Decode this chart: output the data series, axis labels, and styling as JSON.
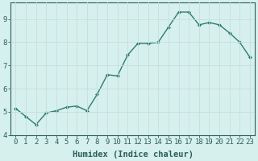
{
  "x": [
    0,
    1,
    2,
    3,
    4,
    5,
    6,
    7,
    8,
    9,
    10,
    11,
    12,
    13,
    14,
    15,
    16,
    17,
    18,
    19,
    20,
    21,
    22,
    23
  ],
  "y": [
    5.15,
    4.8,
    4.45,
    4.95,
    5.05,
    5.2,
    5.25,
    5.05,
    5.75,
    6.6,
    6.55,
    7.45,
    7.95,
    7.95,
    8.0,
    8.65,
    9.3,
    9.3,
    8.75,
    8.85,
    8.75,
    8.4,
    8.0,
    7.35
  ],
  "line_color": "#2e7d6e",
  "marker": "D",
  "marker_size": 2.0,
  "bg_color": "#d6f0ee",
  "grid_color": "#c8dedd",
  "tick_color": "#2e5e5a",
  "xlabel": "Humidex (Indice chaleur)",
  "ylim": [
    4.0,
    9.7
  ],
  "xlim": [
    -0.5,
    23.5
  ],
  "yticks": [
    4,
    5,
    6,
    7,
    8,
    9
  ],
  "xticks": [
    0,
    1,
    2,
    3,
    4,
    5,
    6,
    7,
    8,
    9,
    10,
    11,
    12,
    13,
    14,
    15,
    16,
    17,
    18,
    19,
    20,
    21,
    22,
    23
  ],
  "line_width": 1.0,
  "tick_fontsize": 6.5,
  "xlabel_fontsize": 7.5
}
